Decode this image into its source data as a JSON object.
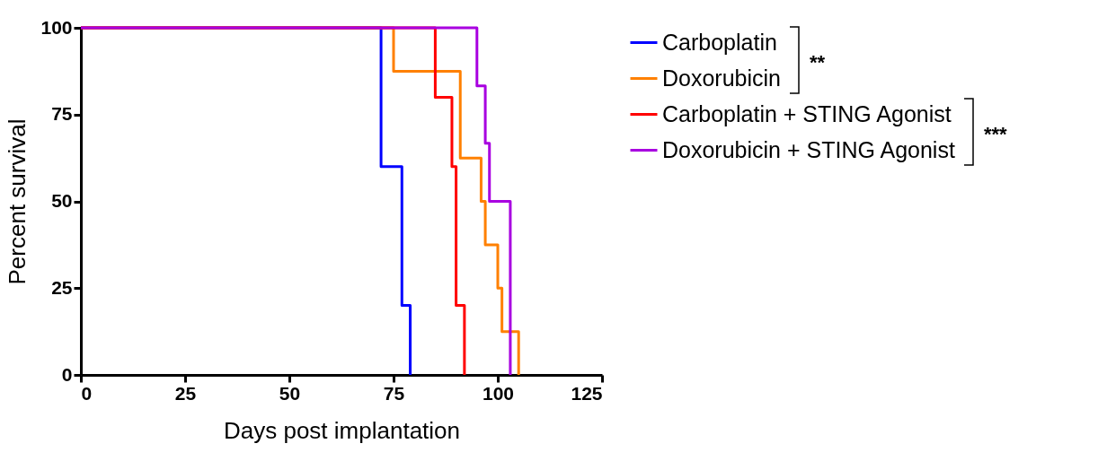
{
  "chart_data": {
    "type": "step",
    "xlabel": "Days post implantation",
    "ylabel": "Percent survival",
    "xlim": [
      0,
      125
    ],
    "ylim": [
      0,
      100
    ],
    "xticks": [
      0,
      25,
      50,
      75,
      100,
      125
    ],
    "yticks": [
      0,
      25,
      50,
      75,
      100
    ],
    "grid": false,
    "legend": "top right",
    "marker": "none",
    "line_style": "solid",
    "series": [
      {
        "name": "Carboplatin",
        "color": "#0000ff",
        "x": [
          0,
          72,
          77,
          79
        ],
        "values": [
          100,
          60,
          20,
          0
        ]
      },
      {
        "name": "Doxorubicin",
        "color": "#ff8000",
        "x": [
          0,
          75,
          91,
          96,
          97,
          100,
          101,
          105
        ],
        "values": [
          100,
          87.5,
          62.5,
          50,
          37.5,
          25,
          12.5,
          0
        ]
      },
      {
        "name": "Carboplatin + STING Agonist",
        "color": "#ff0000",
        "x": [
          0,
          85,
          89,
          90,
          92
        ],
        "values": [
          100,
          80,
          60,
          20,
          0
        ]
      },
      {
        "name": "Doxorubicin + STING Agonist",
        "color": "#a800e0",
        "x": [
          0,
          95,
          97,
          98,
          103
        ],
        "values": [
          100,
          83.3,
          66.7,
          50,
          0
        ]
      }
    ],
    "annotations": [
      "**",
      "***"
    ]
  }
}
